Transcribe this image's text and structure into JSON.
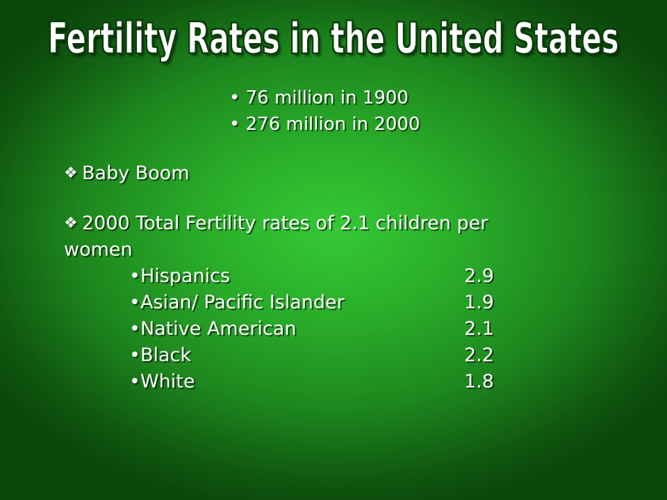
{
  "slide": {
    "title": "Fertility Rates in the United States",
    "population_bullets": [
      "76 million in 1900",
      "276 million in 2000"
    ],
    "sections": [
      {
        "text": "Baby Boom"
      },
      {
        "text": "2000 Total Fertility rates of 2.1 children per",
        "continuation": "women"
      }
    ],
    "rates": [
      {
        "group": "Hispanics",
        "rate": "2.9"
      },
      {
        "group": "Asian/ Pacific Islander",
        "rate": "1.9"
      },
      {
        "group": "Native American",
        "rate": "2.1"
      },
      {
        "group": "Black",
        "rate": "2.2"
      },
      {
        "group": "White",
        "rate": "1.8"
      }
    ],
    "bullet_glyph": "•",
    "diamond_icon": "diamond-bullet-icon"
  },
  "colors": {
    "background_center": "#35c935",
    "background_edge": "#0a450a",
    "text": "#ffffff",
    "title_outline": "#0b3d0b"
  }
}
